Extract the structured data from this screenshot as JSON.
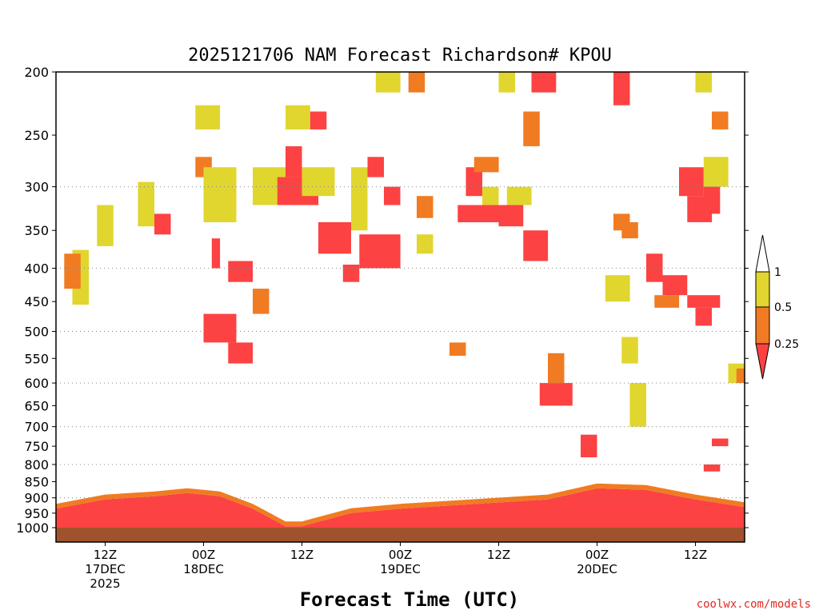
{
  "chart_data": {
    "type": "heatmap",
    "title": "2025121706 NAM Forecast Richardson# KPOU",
    "xlabel": "Forecast Time (UTC)",
    "ylabel": "",
    "credit": "coolwx.com/models",
    "ylim": [
      1000,
      200
    ],
    "yticks": [
      200,
      250,
      300,
      350,
      400,
      450,
      500,
      550,
      600,
      650,
      700,
      750,
      800,
      850,
      900,
      950,
      1000
    ],
    "ytick_labels": [
      "200",
      "250",
      "300",
      "350",
      "400",
      "450",
      "500",
      "550",
      "600",
      "650",
      "700",
      "750",
      "800",
      "850",
      "900",
      "950",
      "1000"
    ],
    "gridlines_at": [
      300,
      400,
      500,
      600,
      700,
      800,
      900
    ],
    "xlim": [
      6,
      90
    ],
    "xticks": [
      {
        "hour": 12,
        "lines": [
          "12Z",
          "17DEC",
          "2025"
        ]
      },
      {
        "hour": 24,
        "lines": [
          "00Z",
          "18DEC"
        ]
      },
      {
        "hour": 36,
        "lines": [
          "12Z"
        ]
      },
      {
        "hour": 48,
        "lines": [
          "00Z",
          "19DEC"
        ]
      },
      {
        "hour": 60,
        "lines": [
          "12Z"
        ]
      },
      {
        "hour": 72,
        "lines": [
          "00Z",
          "20DEC"
        ]
      },
      {
        "hour": 84,
        "lines": [
          "12Z"
        ]
      }
    ],
    "legend": {
      "position": "right",
      "entries": [
        {
          "range": "> 1",
          "color": "#ffffff",
          "label": "1"
        },
        {
          "range": "0.5 - 1",
          "color": "#e0d62e",
          "label": "0.5"
        },
        {
          "range": "0.25 - 0.5",
          "color": "#f07b22",
          "label": "0.25"
        },
        {
          "range": "< 0.25",
          "color": "#fc4242",
          "label": ""
        }
      ]
    },
    "colors": {
      "yellow": "#e0d62e",
      "orange": "#f07b22",
      "red": "#fc4242",
      "ground": "#a0522d"
    },
    "boundary_layer": {
      "description": "Ri < 0.25 layer near surface (red), upper edge pressure in hPa",
      "hours": [
        6,
        12,
        18,
        22,
        26,
        30,
        34,
        36,
        42,
        48,
        54,
        60,
        66,
        72,
        78,
        84,
        90
      ],
      "top_hPa": [
        935,
        905,
        895,
        885,
        895,
        935,
        995,
        995,
        950,
        935,
        925,
        915,
        905,
        870,
        875,
        905,
        930
      ]
    },
    "surface_pressure_hPa": 980,
    "regions": [
      {
        "cat": "yellow",
        "hour": [
          8,
          10
        ],
        "p": [
          375,
          455
        ]
      },
      {
        "cat": "orange",
        "hour": [
          7,
          9
        ],
        "p": [
          380,
          430
        ]
      },
      {
        "cat": "yellow",
        "hour": [
          11,
          13
        ],
        "p": [
          320,
          370
        ]
      },
      {
        "cat": "red",
        "hour": [
          18,
          20
        ],
        "p": [
          330,
          355
        ]
      },
      {
        "cat": "yellow",
        "hour": [
          16,
          18
        ],
        "p": [
          295,
          345
        ]
      },
      {
        "cat": "orange",
        "hour": [
          23,
          25
        ],
        "p": [
          270,
          290
        ]
      },
      {
        "cat": "yellow",
        "hour": [
          23,
          26
        ],
        "p": [
          225,
          245
        ]
      },
      {
        "cat": "yellow",
        "hour": [
          24,
          28
        ],
        "p": [
          280,
          340
        ]
      },
      {
        "cat": "red",
        "hour": [
          25,
          26
        ],
        "p": [
          360,
          400
        ]
      },
      {
        "cat": "red",
        "hour": [
          27,
          30
        ],
        "p": [
          390,
          420
        ]
      },
      {
        "cat": "red",
        "hour": [
          24,
          28
        ],
        "p": [
          470,
          520
        ]
      },
      {
        "cat": "red",
        "hour": [
          27,
          30
        ],
        "p": [
          520,
          560
        ]
      },
      {
        "cat": "orange",
        "hour": [
          30,
          32
        ],
        "p": [
          430,
          470
        ]
      },
      {
        "cat": "yellow",
        "hour": [
          30,
          34
        ],
        "p": [
          280,
          320
        ]
      },
      {
        "cat": "red",
        "hour": [
          33,
          38
        ],
        "p": [
          290,
          320
        ]
      },
      {
        "cat": "red",
        "hour": [
          34,
          36
        ],
        "p": [
          260,
          290
        ]
      },
      {
        "cat": "yellow",
        "hour": [
          34,
          37
        ],
        "p": [
          225,
          245
        ]
      },
      {
        "cat": "red",
        "hour": [
          37,
          39
        ],
        "p": [
          230,
          245
        ]
      },
      {
        "cat": "yellow",
        "hour": [
          36,
          40
        ],
        "p": [
          280,
          310
        ]
      },
      {
        "cat": "red",
        "hour": [
          38,
          42
        ],
        "p": [
          340,
          380
        ]
      },
      {
        "cat": "red",
        "hour": [
          41,
          43
        ],
        "p": [
          395,
          420
        ]
      },
      {
        "cat": "yellow",
        "hour": [
          42,
          44
        ],
        "p": [
          280,
          350
        ]
      },
      {
        "cat": "red",
        "hour": [
          44,
          46
        ],
        "p": [
          270,
          290
        ]
      },
      {
        "cat": "red",
        "hour": [
          43,
          48
        ],
        "p": [
          355,
          400
        ]
      },
      {
        "cat": "red",
        "hour": [
          46,
          48
        ],
        "p": [
          300,
          320
        ]
      },
      {
        "cat": "yellow",
        "hour": [
          45,
          48
        ],
        "p": [
          200,
          215
        ]
      },
      {
        "cat": "orange",
        "hour": [
          49,
          51
        ],
        "p": [
          200,
          215
        ]
      },
      {
        "cat": "orange",
        "hour": [
          50,
          52
        ],
        "p": [
          310,
          335
        ]
      },
      {
        "cat": "yellow",
        "hour": [
          50,
          52
        ],
        "p": [
          355,
          380
        ]
      },
      {
        "cat": "orange",
        "hour": [
          54,
          56
        ],
        "p": [
          520,
          545
        ]
      },
      {
        "cat": "red",
        "hour": [
          55,
          60
        ],
        "p": [
          320,
          340
        ]
      },
      {
        "cat": "red",
        "hour": [
          56,
          58
        ],
        "p": [
          280,
          310
        ]
      },
      {
        "cat": "orange",
        "hour": [
          57,
          60
        ],
        "p": [
          270,
          285
        ]
      },
      {
        "cat": "yellow",
        "hour": [
          58,
          60
        ],
        "p": [
          300,
          320
        ]
      },
      {
        "cat": "red",
        "hour": [
          60,
          63
        ],
        "p": [
          320,
          345
        ]
      },
      {
        "cat": "yellow",
        "hour": [
          61,
          64
        ],
        "p": [
          300,
          320
        ]
      },
      {
        "cat": "yellow",
        "hour": [
          60,
          62
        ],
        "p": [
          200,
          215
        ]
      },
      {
        "cat": "red",
        "hour": [
          64,
          67
        ],
        "p": [
          200,
          215
        ]
      },
      {
        "cat": "orange",
        "hour": [
          63,
          65
        ],
        "p": [
          230,
          260
        ]
      },
      {
        "cat": "red",
        "hour": [
          63,
          66
        ],
        "p": [
          350,
          390
        ]
      },
      {
        "cat": "orange",
        "hour": [
          66,
          68
        ],
        "p": [
          540,
          600
        ]
      },
      {
        "cat": "red",
        "hour": [
          65,
          69
        ],
        "p": [
          600,
          650
        ]
      },
      {
        "cat": "red",
        "hour": [
          70,
          72
        ],
        "p": [
          720,
          780
        ]
      },
      {
        "cat": "red",
        "hour": [
          74,
          76
        ],
        "p": [
          200,
          225
        ]
      },
      {
        "cat": "yellow",
        "hour": [
          73,
          76
        ],
        "p": [
          410,
          450
        ]
      },
      {
        "cat": "orange",
        "hour": [
          74,
          76
        ],
        "p": [
          330,
          350
        ]
      },
      {
        "cat": "orange",
        "hour": [
          75,
          77
        ],
        "p": [
          340,
          360
        ]
      },
      {
        "cat": "yellow",
        "hour": [
          75,
          77
        ],
        "p": [
          510,
          560
        ]
      },
      {
        "cat": "yellow",
        "hour": [
          76,
          78
        ],
        "p": [
          600,
          700
        ]
      },
      {
        "cat": "red",
        "hour": [
          82,
          85
        ],
        "p": [
          280,
          310
        ]
      },
      {
        "cat": "red",
        "hour": [
          83,
          86
        ],
        "p": [
          310,
          340
        ]
      },
      {
        "cat": "red",
        "hour": [
          78,
          80
        ],
        "p": [
          380,
          420
        ]
      },
      {
        "cat": "red",
        "hour": [
          80,
          83
        ],
        "p": [
          410,
          440
        ]
      },
      {
        "cat": "orange",
        "hour": [
          79,
          82
        ],
        "p": [
          440,
          460
        ]
      },
      {
        "cat": "red",
        "hour": [
          83,
          87
        ],
        "p": [
          440,
          460
        ]
      },
      {
        "cat": "red",
        "hour": [
          84,
          86
        ],
        "p": [
          460,
          490
        ]
      },
      {
        "cat": "yellow",
        "hour": [
          85,
          88
        ],
        "p": [
          270,
          300
        ]
      },
      {
        "cat": "red",
        "hour": [
          85,
          87
        ],
        "p": [
          300,
          330
        ]
      },
      {
        "cat": "orange",
        "hour": [
          86,
          88
        ],
        "p": [
          230,
          245
        ]
      },
      {
        "cat": "yellow",
        "hour": [
          84,
          86
        ],
        "p": [
          200,
          215
        ]
      },
      {
        "cat": "yellow",
        "hour": [
          88,
          90
        ],
        "p": [
          560,
          600
        ]
      },
      {
        "cat": "orange",
        "hour": [
          89,
          90
        ],
        "p": [
          570,
          600
        ]
      },
      {
        "cat": "red",
        "hour": [
          85,
          87
        ],
        "p": [
          800,
          820
        ]
      },
      {
        "cat": "red",
        "hour": [
          86,
          88
        ],
        "p": [
          730,
          750
        ]
      }
    ]
  }
}
